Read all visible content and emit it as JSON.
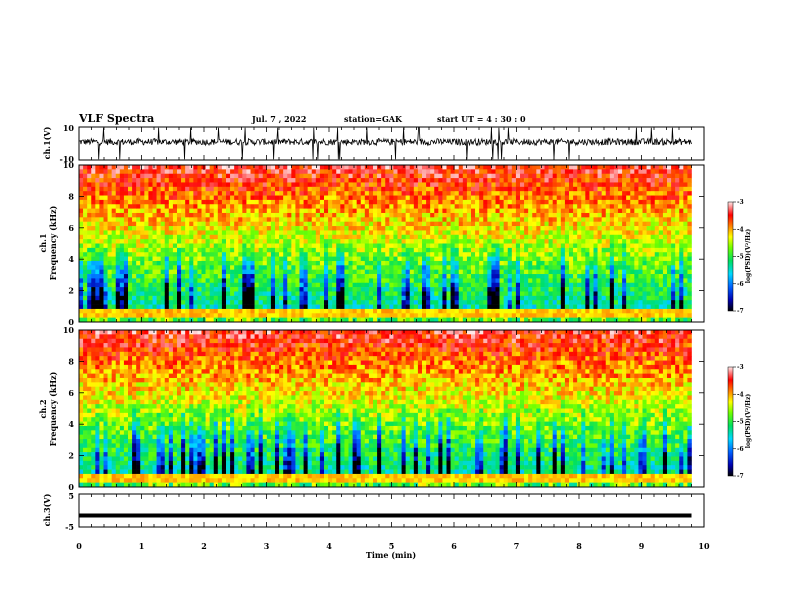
{
  "chart_data": {
    "type": "heatmap",
    "header": {
      "title": "VLF Spectra",
      "date": "Jul. 7 , 2022",
      "station": "station=GAK",
      "start": "start UT = 4 : 30 : 0"
    },
    "x_axis": {
      "label": "Time (min)",
      "range": [
        0,
        10
      ],
      "ticks": [
        "0",
        "1",
        "2",
        "3",
        "4",
        "5",
        "6",
        "7",
        "8",
        "9",
        "10"
      ]
    },
    "panels": [
      {
        "id": "ch1-voltage",
        "type": "line",
        "ylabel": "ch.1(V)",
        "ylim": [
          -10,
          10
        ],
        "yticks": [
          "10",
          "-10"
        ]
      },
      {
        "id": "ch1-spectrogram",
        "type": "heatmap",
        "ylabel_top": "ch.1",
        "ylabel": "Frequency (kHz)",
        "ylim": [
          0,
          10
        ],
        "yticks": [
          "0",
          "2",
          "4",
          "6",
          "8",
          "10"
        ],
        "colorbar": {
          "label": "log(PSD)(V²/Hz)",
          "range": [
            -7,
            -3
          ],
          "ticks": [
            "-3",
            "-4",
            "-5",
            "-6",
            "-7"
          ]
        }
      },
      {
        "id": "ch2-spectrogram",
        "type": "heatmap",
        "ylabel_top": "ch.2",
        "ylabel": "Frequency (kHz)",
        "ylim": [
          0,
          10
        ],
        "yticks": [
          "0",
          "2",
          "4",
          "6",
          "8",
          "10"
        ],
        "colorbar": {
          "label": "log(PSD)(V²/Hz)",
          "range": [
            -7,
            -3
          ],
          "ticks": [
            "-3",
            "-4",
            "-5",
            "-6",
            "-7"
          ]
        }
      },
      {
        "id": "ch3-voltage",
        "type": "line",
        "ylabel": "ch.3(V)",
        "ylim": [
          -5,
          5
        ],
        "yticks": [
          "5",
          "-5"
        ],
        "value": -1.5
      }
    ],
    "data_end_min": 9.8
  }
}
